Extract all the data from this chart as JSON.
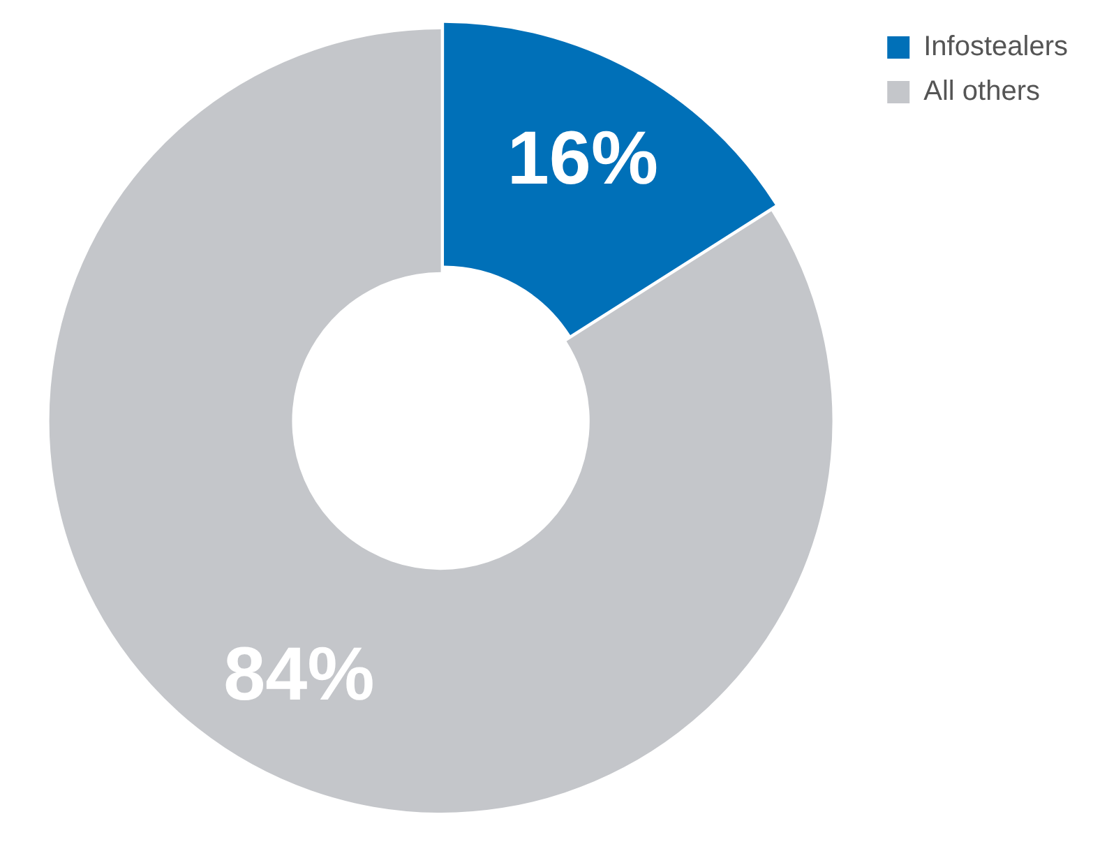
{
  "chart_data": {
    "type": "donut",
    "categories": [
      "Infostealers",
      "All others"
    ],
    "values": [
      16,
      84
    ],
    "colors": [
      "#0070b8",
      "#c4c6ca"
    ],
    "value_labels": [
      "16%",
      "84%"
    ],
    "legend": "top right"
  }
}
